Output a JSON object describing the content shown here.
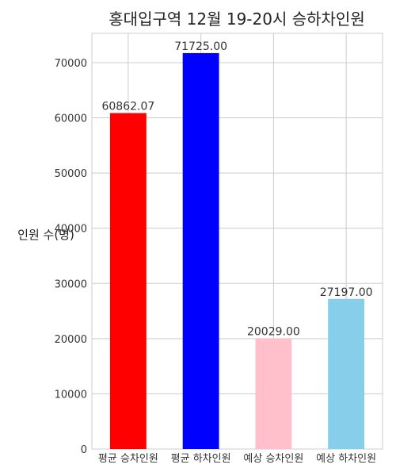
{
  "chart_data": {
    "type": "bar",
    "title": "홍대입구역 12월 19-20시 승하차인원",
    "xlabel": "",
    "ylabel": "인원 수(명)",
    "categories": [
      "평균 승차인원",
      "평균 하차인원",
      "예상 승차인원",
      "예상 하차인원"
    ],
    "values": [
      60862.07,
      71725.0,
      20029.0,
      27197.0
    ],
    "value_labels": [
      "60862.07",
      "71725.00",
      "20029.00",
      "27197.00"
    ],
    "colors": [
      "#ff0000",
      "#0000ff",
      "#ffc0cb",
      "#87ceeb"
    ],
    "ylim": [
      0,
      75310
    ],
    "yticks": [
      0,
      10000,
      20000,
      30000,
      40000,
      50000,
      60000,
      70000
    ],
    "ytick_labels": [
      "0",
      "10000",
      "20000",
      "30000",
      "40000",
      "50000",
      "60000",
      "70000"
    ],
    "grid": true,
    "legend": "none"
  }
}
